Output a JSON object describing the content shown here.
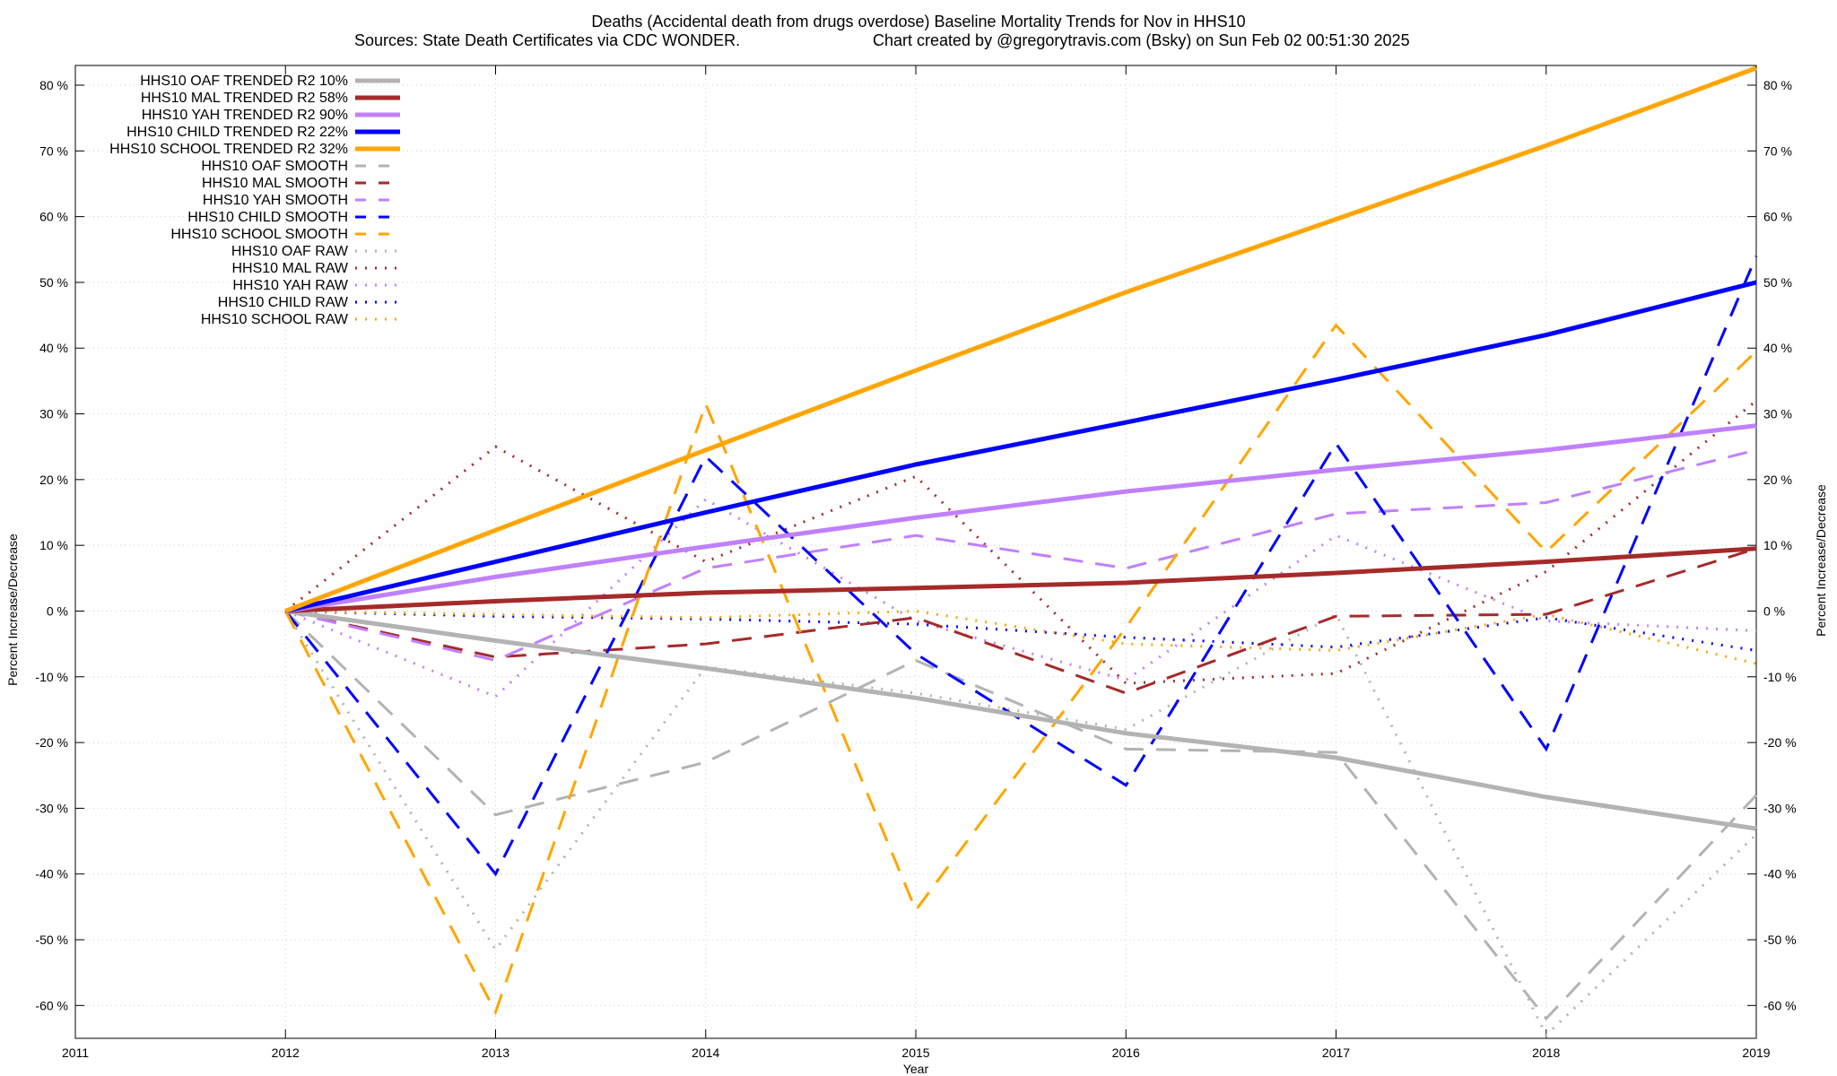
{
  "chart_data": {
    "type": "line",
    "title": "Deaths (Accidental death from drugs overdose)  Baseline Mortality Trends for Nov in HHS10",
    "subtitle_left": "Sources: State Death Certificates via CDC WONDER.",
    "subtitle_right": "Chart created by @gregorytravis.com (Bsky) on Sun Feb 02 00:51:30 2025",
    "xlabel": "Year",
    "ylabel_left": "Percent Increase/Decrease",
    "ylabel_right": "Percent Increase/Decrease",
    "xlim": [
      2011,
      2019
    ],
    "ylim": [
      -65,
      83
    ],
    "x_ticks": [
      2011,
      2012,
      2013,
      2014,
      2015,
      2016,
      2017,
      2018,
      2019
    ],
    "y_ticks": [
      -60,
      -50,
      -40,
      -30,
      -20,
      -10,
      0,
      10,
      20,
      30,
      40,
      50,
      60,
      70,
      80
    ],
    "y_tick_suffix": " %",
    "grid": true,
    "legend_position": "top-left",
    "series": [
      {
        "name": "HHS10 OAF TRENDED R2  10%",
        "style": "solid",
        "color": "#b3b3b3",
        "x": [
          2012,
          2013,
          2014,
          2015,
          2016,
          2017,
          2018,
          2019
        ],
        "values": [
          0,
          -4.5,
          -8.7,
          -13.2,
          -18.6,
          -22.3,
          -28.3,
          -33.1
        ]
      },
      {
        "name": "HHS10 MAL TRENDED R2  58%",
        "style": "solid",
        "color": "#a52a2a",
        "x": [
          2012,
          2013,
          2014,
          2015,
          2016,
          2017,
          2018,
          2019
        ],
        "values": [
          0,
          1.5,
          2.8,
          3.5,
          4.3,
          5.8,
          7.5,
          9.5
        ]
      },
      {
        "name": "HHS10 YAH TRENDED R2  90%",
        "style": "solid",
        "color": "#c080ff",
        "x": [
          2012,
          2013,
          2014,
          2015,
          2016,
          2017,
          2018,
          2019
        ],
        "values": [
          0,
          5.2,
          9.8,
          14.2,
          18.2,
          21.5,
          24.5,
          28.2
        ]
      },
      {
        "name": "HHS10 CHILD TRENDED R2  22%",
        "style": "solid",
        "color": "#0000ff",
        "x": [
          2012,
          2013,
          2014,
          2015,
          2016,
          2017,
          2018,
          2019
        ],
        "values": [
          0,
          7.5,
          15.0,
          22.3,
          28.7,
          35.2,
          42.0,
          50.0
        ]
      },
      {
        "name": "HHS10 SCHOOL TRENDED R2  32%",
        "style": "solid",
        "color": "#ffa500",
        "x": [
          2012,
          2013,
          2014,
          2015,
          2016,
          2017,
          2018,
          2019
        ],
        "values": [
          0,
          12.3,
          24.5,
          36.6,
          48.5,
          59.6,
          70.8,
          82.6
        ]
      },
      {
        "name": "HHS10 OAF SMOOTH",
        "style": "dashed",
        "color": "#b3b3b3",
        "x": [
          2012,
          2013,
          2014,
          2015,
          2016,
          2017,
          2018,
          2019
        ],
        "values": [
          0,
          -31,
          -23,
          -7.5,
          -21,
          -21.5,
          -62,
          -28
        ]
      },
      {
        "name": "HHS10 MAL SMOOTH",
        "style": "dashed",
        "color": "#a52a2a",
        "x": [
          2012,
          2013,
          2014,
          2015,
          2016,
          2017,
          2018,
          2019
        ],
        "values": [
          0,
          -7,
          -5,
          -1,
          -12.5,
          -0.8,
          -0.5,
          9.5
        ]
      },
      {
        "name": "HHS10 YAH SMOOTH",
        "style": "dashed",
        "color": "#c080ff",
        "x": [
          2012,
          2013,
          2014,
          2015,
          2016,
          2017,
          2018,
          2019
        ],
        "values": [
          0,
          -7.5,
          6.5,
          11.5,
          6.5,
          14.8,
          16.5,
          24.5
        ]
      },
      {
        "name": "HHS10 CHILD SMOOTH",
        "style": "dashed",
        "color": "#0000ff",
        "x": [
          2012,
          2013,
          2014,
          2015,
          2016,
          2017,
          2018,
          2019
        ],
        "values": [
          0,
          -40,
          23.5,
          -6.5,
          -26.5,
          25.5,
          -21,
          54
        ]
      },
      {
        "name": "HHS10 SCHOOL SMOOTH",
        "style": "dashed",
        "color": "#ffa500",
        "x": [
          2012,
          2013,
          2014,
          2015,
          2016,
          2017,
          2018,
          2019
        ],
        "values": [
          0,
          -61,
          31.5,
          -45.5,
          -2.5,
          43.5,
          9,
          39.5
        ]
      },
      {
        "name": "HHS10 OAF RAW",
        "style": "dotted",
        "color": "#b3b3b3",
        "x": [
          2012,
          2013,
          2014,
          2015,
          2016,
          2017,
          2018,
          2019
        ],
        "values": [
          0,
          -51.5,
          -8.5,
          -12.5,
          -18,
          -0.5,
          -64.5,
          -34
        ]
      },
      {
        "name": "HHS10 MAL RAW",
        "style": "dotted",
        "color": "#a52a2a",
        "x": [
          2012,
          2013,
          2014,
          2015,
          2016,
          2017,
          2018,
          2019
        ],
        "values": [
          0,
          25,
          7.5,
          20.5,
          -11,
          -9.5,
          6,
          32
        ]
      },
      {
        "name": "HHS10 YAH RAW",
        "style": "dotted",
        "color": "#c080ff",
        "x": [
          2012,
          2013,
          2014,
          2015,
          2016,
          2017,
          2018,
          2019
        ],
        "values": [
          0,
          -13,
          17,
          -1.5,
          -10.5,
          11.5,
          -1.5,
          -3
        ]
      },
      {
        "name": "HHS10 CHILD RAW",
        "style": "dotted",
        "color": "#0000ff",
        "x": [
          2012,
          2013,
          2014,
          2015,
          2016,
          2017,
          2018,
          2019
        ],
        "values": [
          0,
          -0.8,
          -1.2,
          -2,
          -4,
          -5.5,
          -1,
          -6
        ]
      },
      {
        "name": "HHS10 SCHOOL RAW",
        "style": "dotted",
        "color": "#ffa500",
        "x": [
          2012,
          2013,
          2014,
          2015,
          2016,
          2017,
          2018,
          2019
        ],
        "values": [
          0,
          -0.5,
          -1,
          0,
          -5,
          -6,
          -0.5,
          -8
        ]
      }
    ]
  }
}
